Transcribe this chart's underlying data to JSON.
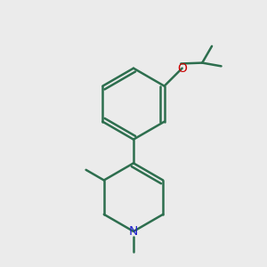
{
  "bg_color": "#ebebeb",
  "bond_color": "#2d6e4e",
  "N_color": "#2222cc",
  "O_color": "#cc0000",
  "line_width": 1.8,
  "font_size": 10,
  "fig_size": [
    3.0,
    3.0
  ],
  "dpi": 100
}
